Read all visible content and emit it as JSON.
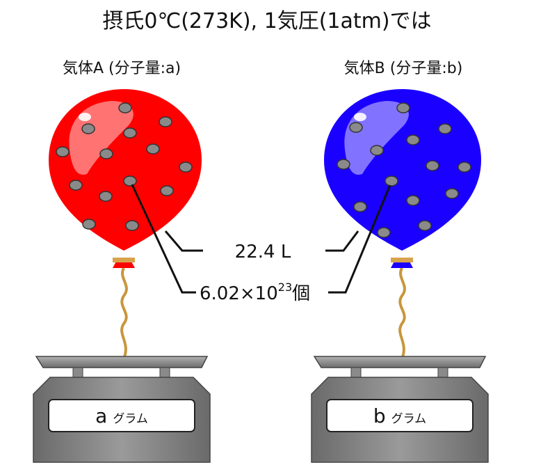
{
  "title": "摂氏0℃(273K), 1気圧(1atm)では",
  "gas_a": {
    "label": "気体A (分子量:a)",
    "color": "#ff0000",
    "knot_color": "#ff0000",
    "scale_reading": "a",
    "scale_unit": "グラム"
  },
  "gas_b": {
    "label": "気体B (分子量:b)",
    "color": "#1a00ff",
    "knot_color": "#1a00ff",
    "scale_reading": "b",
    "scale_unit": "グラム"
  },
  "shared": {
    "volume": "22.4 L",
    "count_base": "6.02×10",
    "count_exponent": "23",
    "count_unit": "個"
  },
  "colors": {
    "molecule": "#8a8a8a",
    "string": "#c8963c",
    "scale": "#7a7a7a",
    "scale_dark": "#555555"
  }
}
